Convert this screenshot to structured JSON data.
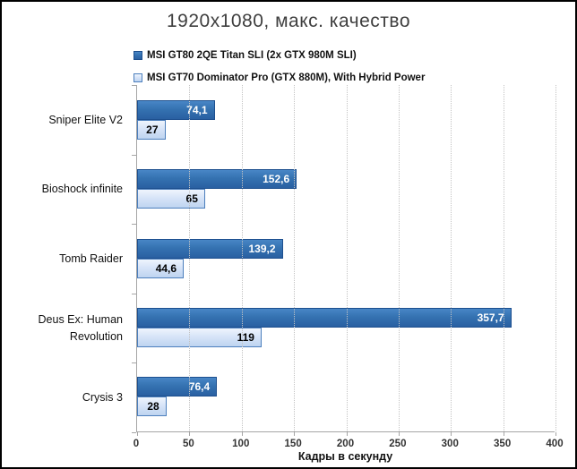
{
  "title": "1920x1080, макс. качество",
  "legend": {
    "items": [
      {
        "label": "MSI GT80 2QE Titan SLI (2x GTX 980M SLI)"
      },
      {
        "label": "MSI GT70 Dominator Pro (GTX 880M), With Hybrid Power"
      }
    ]
  },
  "colors": {
    "series_dark_fill_top": "#4886c6",
    "series_dark_fill_bottom": "#2a60a2",
    "series_dark_border": "#1d4f8e",
    "series_light_fill_top": "#eff5fd",
    "series_light_fill_bottom": "#bed4f0",
    "series_light_border": "#4c7fbd",
    "dark_value_text": "#ffffff",
    "light_value_text": "#000000",
    "axis_line": "#a6a6a6",
    "gridline": "#c3c3c3"
  },
  "chart_data": {
    "type": "bar",
    "orientation": "horizontal",
    "title": "1920x1080, макс. качество",
    "xlabel": "Кадры в секунду",
    "ylabel": "",
    "xlim": [
      0,
      400
    ],
    "x_ticks": [
      0,
      50,
      100,
      150,
      200,
      250,
      300,
      350,
      400
    ],
    "grid": "vertical-dotted",
    "legend_position": "top",
    "categories": [
      "Sniper Elite V2",
      "Bioshock infinite",
      "Tomb Raider",
      "Deus Ex: Human Revolution",
      "Crysis 3"
    ],
    "series": [
      {
        "name": "MSI GT80 2QE Titan SLI (2x GTX 980M SLI)",
        "values": [
          74.1,
          152.6,
          139.2,
          357.7,
          76.4
        ],
        "value_labels": [
          "74,1",
          "152,6",
          "139,2",
          "357,7",
          "76,4"
        ],
        "style": "dark",
        "label_color": "#ffffff"
      },
      {
        "name": "MSI GT70 Dominator Pro (GTX 880M), With Hybrid Power",
        "values": [
          27,
          65,
          44.6,
          119,
          28
        ],
        "value_labels": [
          "27",
          "65",
          "44,6",
          "119",
          "28"
        ],
        "style": "light",
        "label_color": "#000000"
      }
    ]
  }
}
